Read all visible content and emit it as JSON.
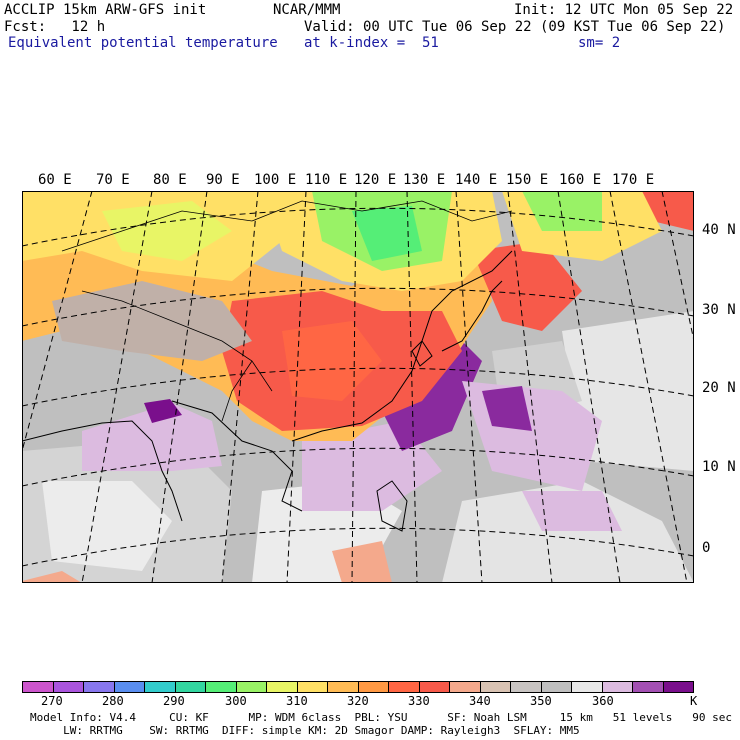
{
  "header": {
    "model": "ACCLIP 15km ARW-GFS init",
    "org": "NCAR/MMM",
    "init": "Init: 12 UTC Mon 05 Sep 22",
    "fcst": "Fcst:   12 h",
    "valid": "Valid: 00 UTC Tue 06 Sep 22 (09 KST Tue 06 Sep 22)",
    "field": "Equivalent potential temperature",
    "level": "at k-index =  51",
    "smooth": "sm= 2"
  },
  "map": {
    "lon_labels": [
      "60 E",
      "70 E",
      "80 E",
      "90 E",
      "100 E",
      "110 E",
      "120 E",
      "130 E",
      "140 E",
      "150 E",
      "160 E",
      "170 E"
    ],
    "lat_labels": [
      "40 N",
      "30 N",
      "20 N",
      "10 N",
      "0"
    ]
  },
  "colorbar": {
    "colors": [
      "#cc55cc",
      "#aa55dd",
      "#8877ee",
      "#5a8ef0",
      "#33cccc",
      "#33d6a0",
      "#55ee77",
      "#99f266",
      "#e8f566",
      "#ffe066",
      "#ffbb55",
      "#ff9944",
      "#ff6644",
      "#f75a4a",
      "#f4a98c",
      "#d9c3b3",
      "#c8c4c2",
      "#bfbfbf",
      "#e8e8e8",
      "#dcbbe0",
      "#a350b3",
      "#7a0f8c"
    ],
    "ticks": [
      "270",
      "280",
      "290",
      "300",
      "310",
      "320",
      "330",
      "340",
      "350",
      "360"
    ],
    "unit": "K"
  },
  "footer": {
    "line1": "Model Info: V4.4     CU: KF      MP: WDM 6class  PBL: YSU      SF: Noah LSM     15 km   51 levels   90 sec",
    "line2": "     LW: RRTMG    SW: RRTMG  DIFF: simple KM: 2D Smagor DAMP: Rayleigh3  SFLAY: MM5"
  }
}
